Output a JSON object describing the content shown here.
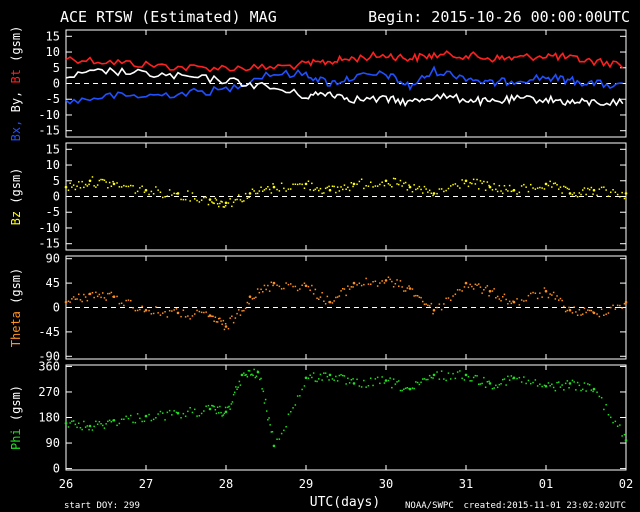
{
  "header": {
    "title": "ACE RTSW (Estimated) MAG",
    "begin": "Begin: 2015-10-26 00:00:00UTC"
  },
  "footer": {
    "start_doy": "start DOY:  299",
    "xlabel": "UTC(days)",
    "agency": "NOAA/SWPC",
    "created": "created:2015-11-01 23:02:02UTC"
  },
  "colors": {
    "background": "#000000",
    "axes": "#ffffff",
    "bt": "#ff2020",
    "bx": "#2050ff",
    "by": "#ffffff",
    "bz": "#ffff00",
    "theta": "#ff9020",
    "phi": "#20e020"
  },
  "chart_data": [
    {
      "type": "line",
      "panel": "B components",
      "ylabel_parts": [
        {
          "text": "Bx,",
          "color": "#2050ff"
        },
        {
          "text": " By,",
          "color": "#ffffff"
        },
        {
          "text": " Bt",
          "color": "#ff2020"
        },
        {
          "text": " (gsm)",
          "color": "#ffffff"
        }
      ],
      "ylim": [
        -17,
        17
      ],
      "yticks": [
        "15",
        "10",
        "5",
        "0",
        "-5",
        "-10",
        "-15"
      ],
      "ytick_values": [
        15,
        10,
        5,
        0,
        -5,
        -10,
        -15
      ],
      "xlim": [
        0,
        7
      ],
      "zero_line": true,
      "series": [
        {
          "name": "Bt",
          "color": "#ff2020",
          "x": [
            0,
            0.5,
            1,
            1.5,
            2,
            2.5,
            3,
            3.3,
            3.6,
            4,
            4.3,
            4.6,
            5,
            5.3,
            5.6,
            6,
            6.3,
            6.6,
            7
          ],
          "y": [
            8,
            7,
            6,
            5,
            5,
            5,
            6,
            7,
            8,
            9,
            8,
            9,
            9,
            8,
            8,
            9,
            8,
            7,
            6
          ]
        },
        {
          "name": "Bx",
          "color": "#2050ff",
          "x": [
            0,
            0.5,
            1,
            1.5,
            2,
            2.5,
            3,
            3.3,
            3.6,
            4,
            4.3,
            4.6,
            5,
            5.3,
            5.6,
            6,
            6.3,
            6.6,
            7
          ],
          "y": [
            -6,
            -4,
            -4,
            -3,
            -2,
            3,
            3,
            0,
            2,
            3,
            -1,
            4,
            2,
            0,
            1,
            2,
            1,
            0,
            -1
          ]
        },
        {
          "name": "By",
          "color": "#ffffff",
          "x": [
            0,
            0.5,
            1,
            1.5,
            2,
            2.5,
            3,
            3.3,
            3.6,
            4,
            4.3,
            4.6,
            5,
            5.3,
            5.6,
            6,
            6.3,
            6.6,
            7
          ],
          "y": [
            2,
            4,
            3,
            2,
            1,
            -1,
            -4,
            -3,
            -5,
            -5,
            -6,
            -4,
            -5,
            -6,
            -5,
            -5,
            -6,
            -6,
            -6
          ]
        }
      ]
    },
    {
      "type": "scatter",
      "panel": "Bz",
      "ylabel_parts": [
        {
          "text": "Bz",
          "color": "#ffff00"
        },
        {
          "text": "  (gsm)",
          "color": "#ffffff"
        }
      ],
      "ylim": [
        -17,
        17
      ],
      "yticks": [
        "15",
        "10",
        "5",
        "0",
        "-5",
        "-10",
        "-15"
      ],
      "ytick_values": [
        15,
        10,
        5,
        0,
        -5,
        -10,
        -15
      ],
      "xlim": [
        0,
        7
      ],
      "zero_line": true,
      "series": [
        {
          "name": "Bz",
          "color": "#ffff00",
          "x": [
            0,
            0.3,
            0.6,
            1,
            1.4,
            1.8,
            2,
            2.3,
            2.6,
            3,
            3.3,
            3.6,
            4,
            4.3,
            4.6,
            5,
            5.3,
            5.6,
            6,
            6.3,
            6.6,
            7
          ],
          "y": [
            3,
            5,
            4,
            2,
            1,
            -1,
            -2,
            1,
            3,
            4,
            2,
            4,
            5,
            3,
            1,
            5,
            3,
            2,
            4,
            1,
            2,
            1
          ]
        }
      ]
    },
    {
      "type": "scatter",
      "panel": "Theta",
      "ylabel_parts": [
        {
          "text": "Theta",
          "color": "#ff9020"
        },
        {
          "text": "  (gsm)",
          "color": "#ffffff"
        }
      ],
      "ylim": [
        -95,
        95
      ],
      "yticks": [
        "90",
        "45",
        "0",
        "-45",
        "-90"
      ],
      "ytick_values": [
        90,
        45,
        0,
        -45,
        -90
      ],
      "xlim": [
        0,
        7
      ],
      "zero_line": true,
      "series": [
        {
          "name": "Theta",
          "color": "#ff9020",
          "x": [
            0,
            0.3,
            0.6,
            1,
            1.4,
            1.8,
            2,
            2.3,
            2.6,
            3,
            3.3,
            3.6,
            4,
            4.3,
            4.6,
            5,
            5.3,
            5.6,
            6,
            6.3,
            6.6,
            7
          ],
          "y": [
            10,
            25,
            20,
            -5,
            -10,
            -15,
            -35,
            20,
            45,
            40,
            10,
            45,
            50,
            35,
            -5,
            45,
            30,
            10,
            30,
            -5,
            -10,
            10
          ]
        }
      ]
    },
    {
      "type": "scatter",
      "panel": "Phi",
      "ylabel_parts": [
        {
          "text": "Phi",
          "color": "#20e020"
        },
        {
          "text": "  (gsm)",
          "color": "#ffffff"
        }
      ],
      "ylim": [
        -5,
        365
      ],
      "yticks": [
        "360",
        "270",
        "180",
        "90",
        "0"
      ],
      "ytick_values": [
        360,
        270,
        180,
        90,
        0
      ],
      "xlim": [
        0,
        7
      ],
      "zero_line": false,
      "series": [
        {
          "name": "Phi",
          "color": "#20e020",
          "x": [
            0,
            0.3,
            0.6,
            1,
            1.4,
            1.8,
            2,
            2.2,
            2.4,
            2.6,
            3,
            3.3,
            3.6,
            4,
            4.3,
            4.6,
            5,
            5.3,
            5.6,
            6,
            6.3,
            6.6,
            7
          ],
          "y": [
            160,
            150,
            170,
            185,
            195,
            210,
            200,
            330,
            340,
            80,
            320,
            330,
            300,
            310,
            280,
            330,
            330,
            300,
            320,
            290,
            300,
            280,
            100
          ]
        }
      ]
    }
  ],
  "x_axis": {
    "ticks": [
      "26",
      "27",
      "28",
      "29",
      "30",
      "31",
      "01",
      "02"
    ]
  }
}
